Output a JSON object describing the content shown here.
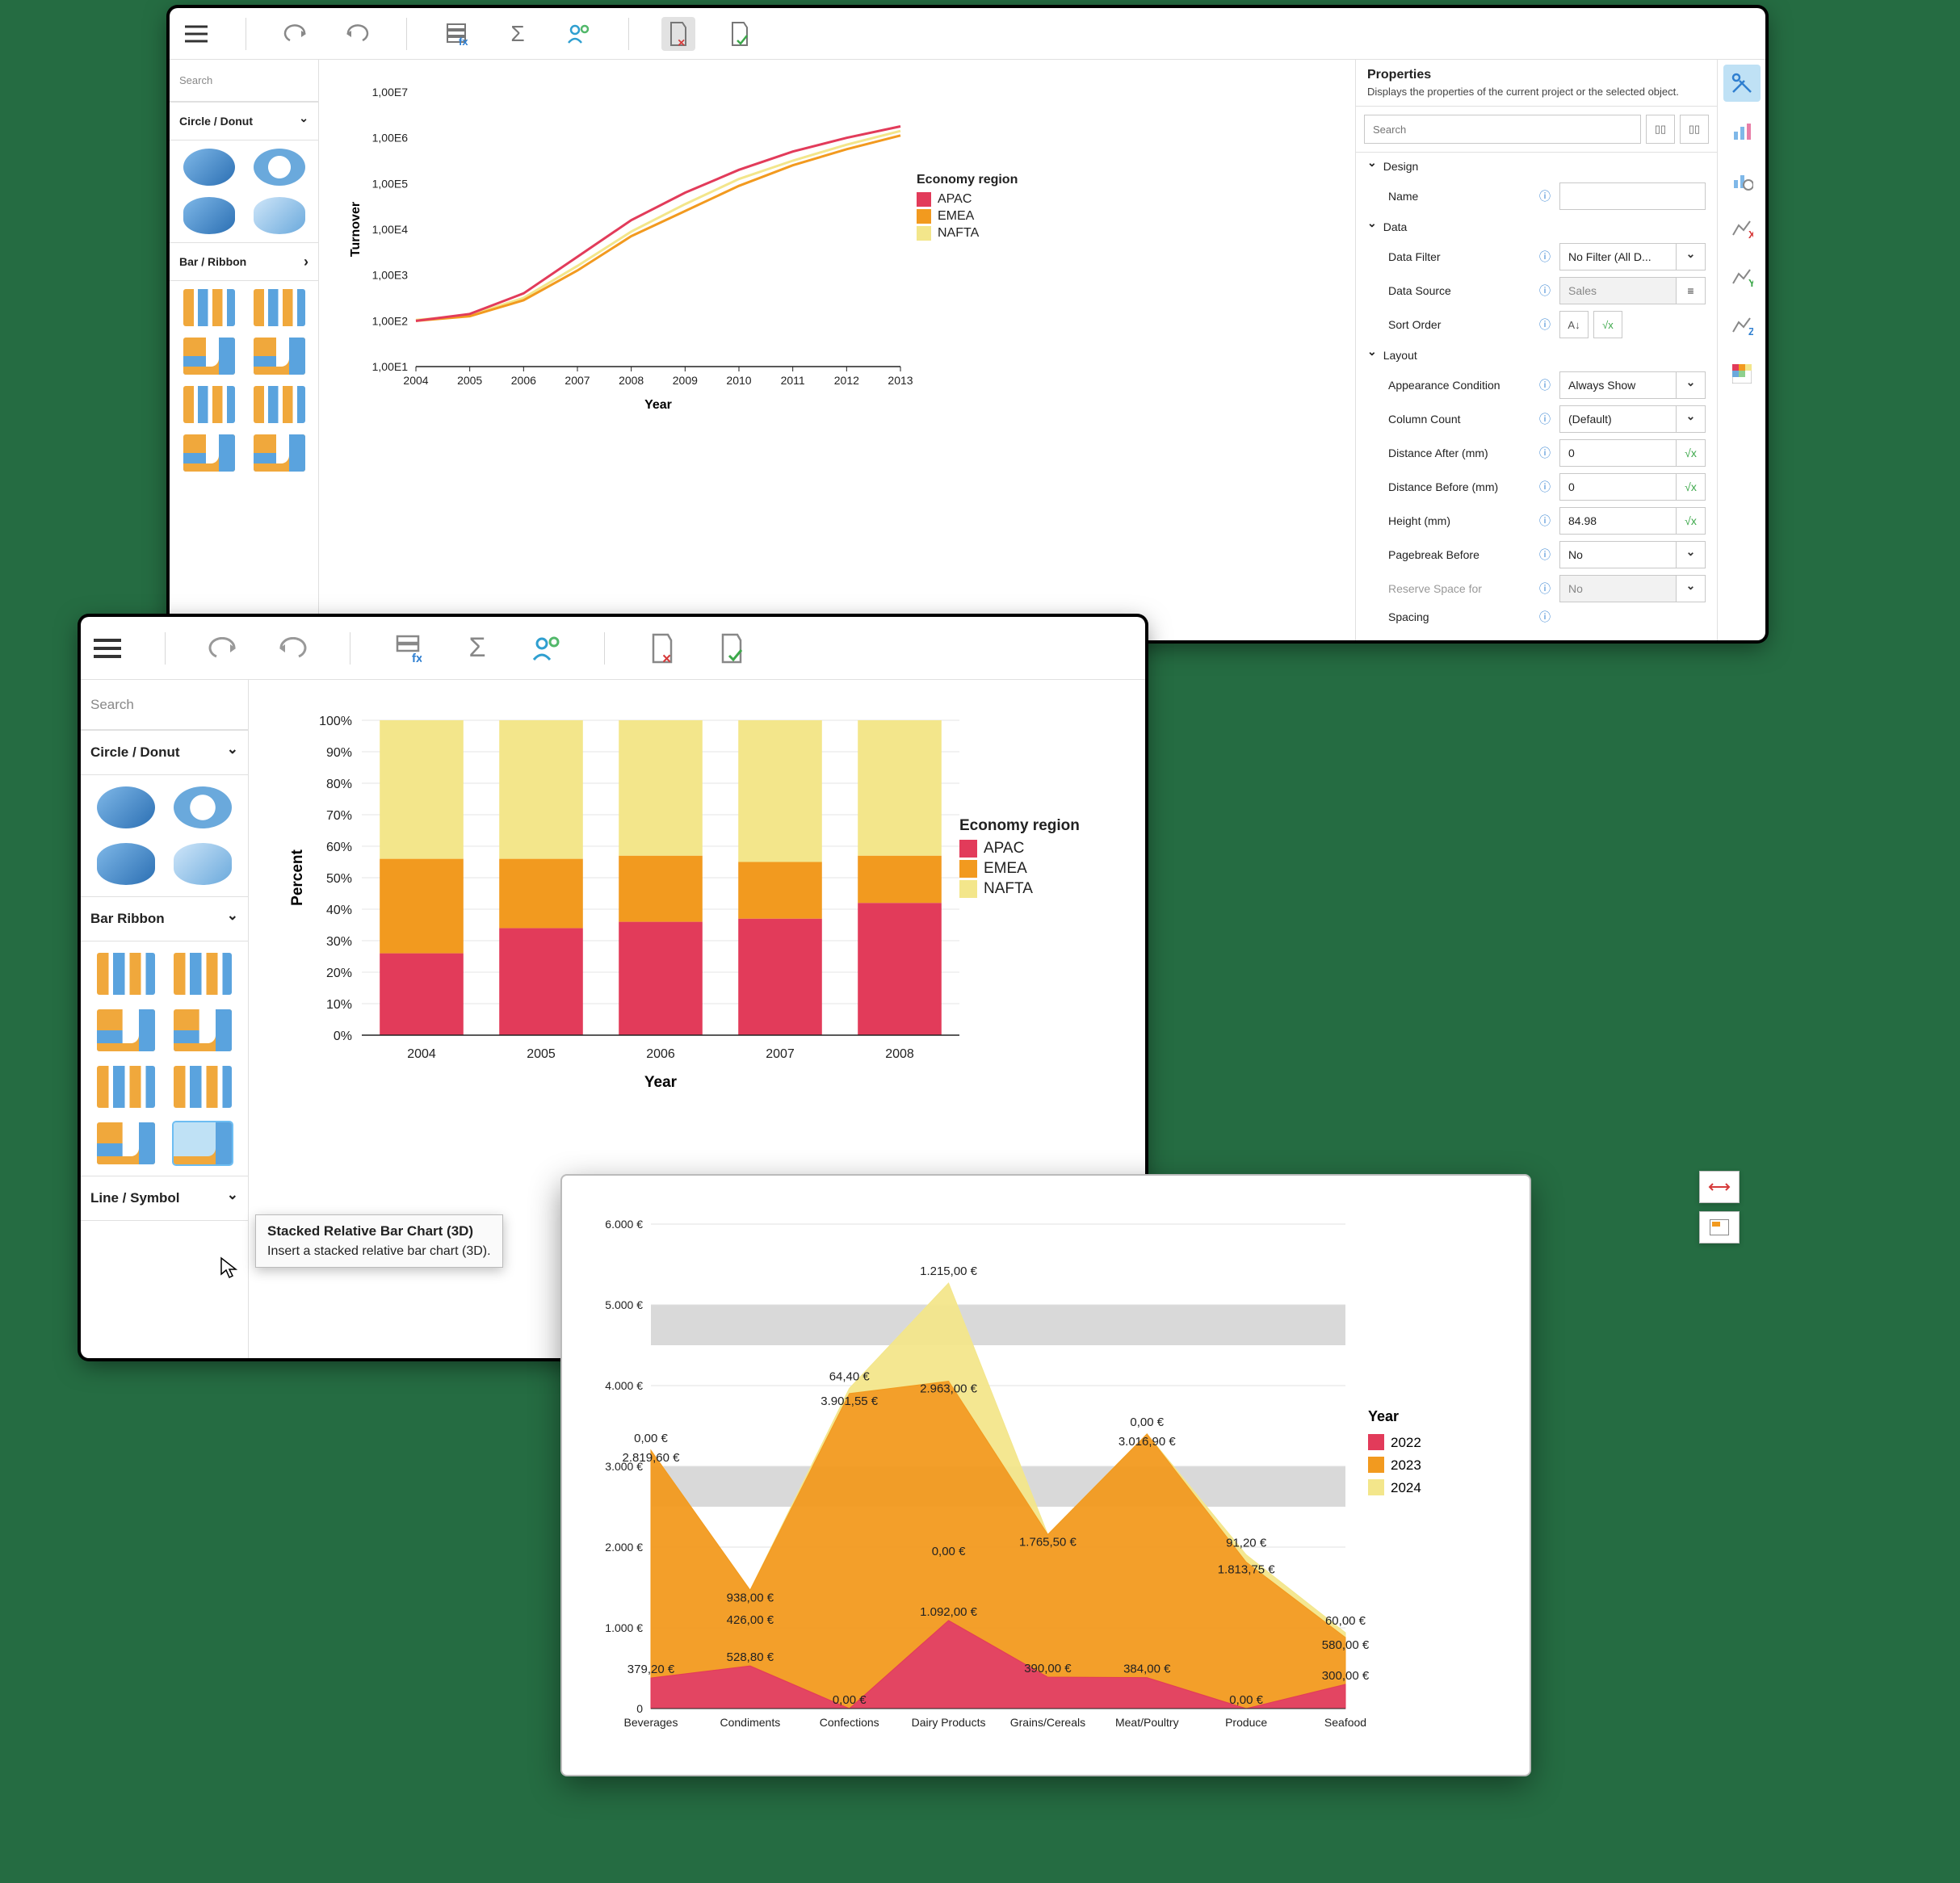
{
  "colors": {
    "apac": "#e23b5a",
    "emea": "#f29a1f",
    "nafta": "#f3e68b",
    "grid": "#cfcfcf",
    "axis": "#222222",
    "bg": "#ffffff",
    "accent_blue": "#2f7fd0",
    "sel_blue": "#bfe1f5",
    "page_bg": "#256c42"
  },
  "window1": {
    "sidebar": {
      "search_placeholder": "Search",
      "section1": "Circle / Donut",
      "section2": "Bar / Ribbon"
    },
    "chart": {
      "type": "line-log",
      "xlabel": "Year",
      "ylabel": "Turnover",
      "legend_title": "Economy region",
      "xticks": [
        "2004",
        "2005",
        "2006",
        "2007",
        "2008",
        "2009",
        "2010",
        "2011",
        "2012",
        "2013"
      ],
      "yticks": [
        "1,00E1",
        "1,00E2",
        "1,00E3",
        "1,00E4",
        "1,00E5",
        "1,00E6",
        "1,00E7"
      ],
      "ylog_exp": [
        1,
        2,
        3,
        4,
        5,
        6,
        7
      ],
      "series": [
        {
          "name": "APAC",
          "color": "#e23b5a",
          "values_log": [
            2.0,
            2.15,
            2.6,
            3.4,
            4.2,
            4.8,
            5.3,
            5.7,
            6.0,
            6.25
          ]
        },
        {
          "name": "EMEA",
          "color": "#f29a1f",
          "values_log": [
            2.0,
            2.1,
            2.45,
            3.1,
            3.85,
            4.4,
            4.95,
            5.4,
            5.75,
            6.05
          ]
        },
        {
          "name": "NAFTA",
          "color": "#f3e68b",
          "values_log": [
            2.02,
            2.12,
            2.5,
            3.2,
            3.95,
            4.55,
            5.1,
            5.5,
            5.85,
            6.15
          ]
        }
      ]
    },
    "properties": {
      "title": "Properties",
      "desc": "Displays the properties of the current project or the selected object.",
      "search_placeholder": "Search",
      "groups": {
        "design": {
          "label": "Design",
          "name_label": "Name",
          "name_value": ""
        },
        "data": {
          "label": "Data",
          "filter_label": "Data Filter",
          "filter_value": "No Filter (All D...",
          "source_label": "Data Source",
          "source_value": "Sales",
          "sort_label": "Sort Order"
        },
        "layout": {
          "label": "Layout",
          "appearance_label": "Appearance Condition",
          "appearance_value": "Always Show",
          "colcount_label": "Column Count",
          "colcount_value": "(Default)",
          "after_label": "Distance After (mm)",
          "after_value": "0",
          "before_label": "Distance Before (mm)",
          "before_value": "0",
          "height_label": "Height (mm)",
          "height_value": "84.98",
          "pagebreak_label": "Pagebreak Before",
          "pagebreak_value": "No",
          "space_label": "Reserve Space for",
          "space_value": "No",
          "spacing_label": "Spacing"
        }
      }
    }
  },
  "window2": {
    "sidebar": {
      "search_placeholder": "Search",
      "section1": "Circle / Donut",
      "section2": "Bar Ribbon",
      "section3": "Line / Symbol"
    },
    "tooltip": {
      "title": "Stacked Relative Bar Chart (3D)",
      "desc": "Insert a stacked relative bar chart (3D)."
    },
    "chart": {
      "type": "stacked-bar-100",
      "xlabel": "Year",
      "ylabel": "Percent",
      "legend_title": "Economy region",
      "categories": [
        "2004",
        "2005",
        "2006",
        "2007",
        "2008"
      ],
      "yticks": [
        "0%",
        "10%",
        "20%",
        "30%",
        "40%",
        "50%",
        "60%",
        "70%",
        "80%",
        "90%",
        "100%"
      ],
      "series": [
        {
          "name": "APAC",
          "color": "#e23b5a",
          "pct": [
            26,
            34,
            36,
            37,
            42
          ]
        },
        {
          "name": "EMEA",
          "color": "#f29a1f",
          "pct": [
            30,
            22,
            21,
            18,
            15
          ]
        },
        {
          "name": "NAFTA",
          "color": "#f3e68b",
          "pct": [
            44,
            44,
            43,
            45,
            43
          ]
        }
      ]
    }
  },
  "window3": {
    "chart": {
      "type": "area",
      "legend_title": "Year",
      "categories": [
        "Beverages",
        "Condiments",
        "Confections",
        "Dairy Products",
        "Grains/Cereals",
        "Meat/Poultry",
        "Produce",
        "Seafood"
      ],
      "yticks": [
        "0",
        "1.000 €",
        "2.000 €",
        "3.000 €",
        "4.000 €",
        "5.000 €",
        "6.000 €"
      ],
      "ymax": 6000,
      "bands": [
        [
          2500,
          3000
        ],
        [
          4500,
          5000
        ]
      ],
      "band_color": "#d9d9d9",
      "series": [
        {
          "name": "2024",
          "color": "#f3e68b",
          "values": [
            0,
            0,
            64.4,
            1215.0,
            0,
            0,
            91.2,
            60.0
          ],
          "labels": [
            "0,00 €",
            "",
            "64,40 €",
            "1.215,00 €",
            "",
            "0,00 €",
            "91,20 €",
            "60,00 €"
          ]
        },
        {
          "name": "2023",
          "color": "#f29a1f",
          "values": [
            2819.6,
            938.0,
            3901.55,
            2963.0,
            1765.5,
            3016.9,
            1813.75,
            580.0
          ],
          "labels": [
            "2.819,60 €",
            "938,00 €",
            "3.901,55 €",
            "2.963,00 €",
            "1.765,50 €",
            "3.016,90 €",
            "1.813,75 €",
            "580,00 €"
          ]
        },
        {
          "name": "2022",
          "color": "#e23b5a",
          "values": [
            379.2,
            528.8,
            0,
            1092.0,
            390.0,
            384.0,
            0,
            300.0
          ],
          "labels": [
            "379,20 €",
            "528,80 €",
            "0,00 €",
            "1.092,00 €",
            "390,00 €",
            "384,00 €",
            "0,00 €",
            "300,00 €"
          ]
        }
      ],
      "extra_labels": [
        {
          "text": "426,00 €",
          "cat": 1,
          "y": 1050
        },
        {
          "text": "0,00 €",
          "cat": 3,
          "y": 1900
        }
      ]
    }
  }
}
